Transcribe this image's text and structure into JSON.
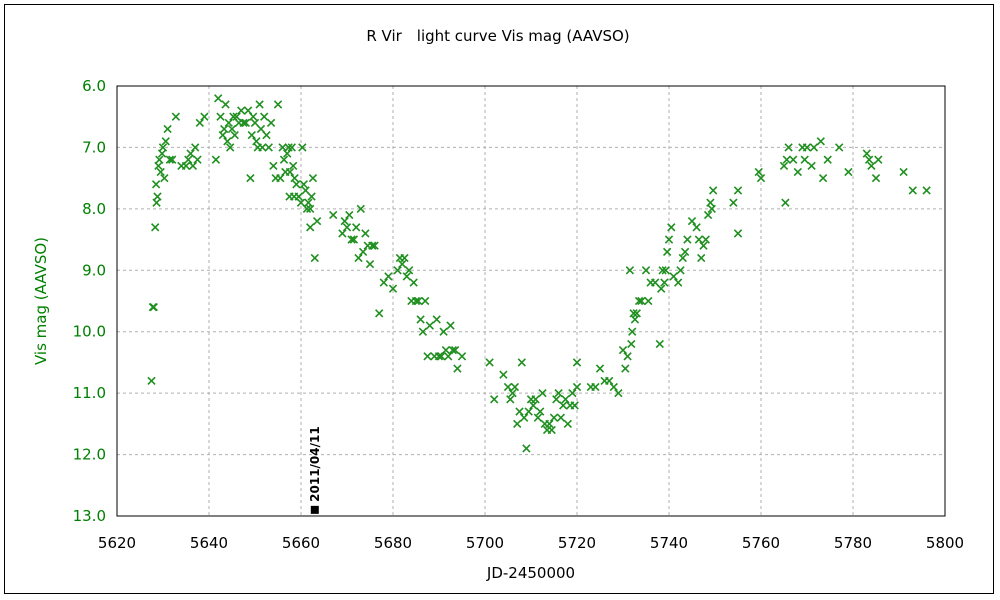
{
  "chart_data": {
    "type": "scatter",
    "title": "R Vir　light curve Vis mag (AAVSO)",
    "xlabel": "JD-2450000",
    "ylabel": "Vis mag (AAVSO)",
    "xlim": [
      5620,
      5800
    ],
    "ylim": [
      13.0,
      6.0
    ],
    "y_inverted": true,
    "grid": true,
    "legend": "none",
    "marker_color": "#1f8f1f",
    "y_axis_color": "#008000",
    "x_ticks": [
      "5620",
      "5640",
      "5660",
      "5680",
      "5700",
      "5720",
      "5740",
      "5760",
      "5780",
      "5800"
    ],
    "y_ticks": [
      "6.0",
      "7.0",
      "8.0",
      "9.0",
      "10.0",
      "11.0",
      "12.0",
      "13.0"
    ],
    "annotation": {
      "label": "2011/04/11",
      "x": 5663,
      "y": 12.9
    },
    "points": [
      [
        5627.5,
        10.8
      ],
      [
        5627.8,
        9.6
      ],
      [
        5628,
        9.6
      ],
      [
        5628.3,
        8.3
      ],
      [
        5628.5,
        7.6
      ],
      [
        5628.6,
        7.9
      ],
      [
        5628.8,
        7.8
      ],
      [
        5629,
        7.3
      ],
      [
        5629.2,
        7.2
      ],
      [
        5629.5,
        7.4
      ],
      [
        5629.8,
        7.1
      ],
      [
        5630,
        7.0
      ],
      [
        5630.3,
        7.5
      ],
      [
        5630.6,
        6.9
      ],
      [
        5631,
        6.7
      ],
      [
        5631.5,
        7.2
      ],
      [
        5632,
        7.2
      ],
      [
        5632.8,
        6.5
      ],
      [
        5634,
        7.3
      ],
      [
        5635,
        7.3
      ],
      [
        5635.5,
        7.2
      ],
      [
        5636,
        7.1
      ],
      [
        5636.5,
        7.3
      ],
      [
        5637,
        7.0
      ],
      [
        5637.5,
        7.2
      ],
      [
        5638,
        6.6
      ],
      [
        5639,
        6.5
      ],
      [
        5641.5,
        7.2
      ],
      [
        5642,
        6.2
      ],
      [
        5642.5,
        6.5
      ],
      [
        5643,
        6.8
      ],
      [
        5643.3,
        6.7
      ],
      [
        5643.6,
        6.3
      ],
      [
        5644,
        6.9
      ],
      [
        5644.3,
        6.6
      ],
      [
        5644.6,
        7.0
      ],
      [
        5645,
        6.7
      ],
      [
        5645.3,
        6.5
      ],
      [
        5645.6,
        6.8
      ],
      [
        5646,
        6.5
      ],
      [
        5646.5,
        6.6
      ],
      [
        5647,
        6.4
      ],
      [
        5647.5,
        6.6
      ],
      [
        5648,
        6.6
      ],
      [
        5648.5,
        6.4
      ],
      [
        5649,
        7.5
      ],
      [
        5649.3,
        6.8
      ],
      [
        5649.6,
        6.5
      ],
      [
        5650,
        6.6
      ],
      [
        5650.3,
        6.9
      ],
      [
        5650.6,
        7.0
      ],
      [
        5651,
        6.3
      ],
      [
        5651.3,
        6.7
      ],
      [
        5651.6,
        7.0
      ],
      [
        5652,
        6.5
      ],
      [
        5652.5,
        6.8
      ],
      [
        5653,
        7.0
      ],
      [
        5653.5,
        6.6
      ],
      [
        5654,
        7.3
      ],
      [
        5654.5,
        7.5
      ],
      [
        5655,
        6.3
      ],
      [
        5655.5,
        7.5
      ],
      [
        5656,
        7.0
      ],
      [
        5656.3,
        7.2
      ],
      [
        5656.6,
        7.4
      ],
      [
        5657,
        7.1
      ],
      [
        5657.3,
        7.0
      ],
      [
        5657.6,
        7.4
      ],
      [
        5658,
        7.0
      ],
      [
        5658.3,
        7.3
      ],
      [
        5658.6,
        7.5
      ],
      [
        5659,
        7.6
      ],
      [
        5657.5,
        7.8
      ],
      [
        5658.5,
        7.8
      ],
      [
        5659.5,
        7.8
      ],
      [
        5660,
        7.9
      ],
      [
        5660.3,
        7.0
      ],
      [
        5660.6,
        7.6
      ],
      [
        5661,
        7.7
      ],
      [
        5661.3,
        8.0
      ],
      [
        5661.6,
        7.9
      ],
      [
        5662,
        8.0
      ],
      [
        5662.3,
        7.8
      ],
      [
        5662.6,
        7.5
      ],
      [
        5662,
        8.3
      ],
      [
        5663,
        8.8
      ],
      [
        5663.5,
        8.2
      ],
      [
        5667,
        8.1
      ],
      [
        5669,
        8.4
      ],
      [
        5669.5,
        8.2
      ],
      [
        5670,
        8.3
      ],
      [
        5670.5,
        8.1
      ],
      [
        5671,
        8.5
      ],
      [
        5671.5,
        8.5
      ],
      [
        5672,
        8.3
      ],
      [
        5672.5,
        8.8
      ],
      [
        5673,
        8.0
      ],
      [
        5673.5,
        8.7
      ],
      [
        5674,
        8.4
      ],
      [
        5674.5,
        8.6
      ],
      [
        5675,
        8.9
      ],
      [
        5675.5,
        8.6
      ],
      [
        5676,
        8.6
      ],
      [
        5677,
        9.7
      ],
      [
        5678,
        9.2
      ],
      [
        5679,
        9.1
      ],
      [
        5680,
        9.3
      ],
      [
        5681,
        9.0
      ],
      [
        5681.5,
        8.8
      ],
      [
        5682,
        8.9
      ],
      [
        5682.5,
        8.8
      ],
      [
        5683,
        9.1
      ],
      [
        5683.5,
        9.0
      ],
      [
        5684,
        9.5
      ],
      [
        5684.5,
        9.2
      ],
      [
        5685,
        9.5
      ],
      [
        5685.5,
        9.5
      ],
      [
        5686,
        9.8
      ],
      [
        5686.5,
        10.0
      ],
      [
        5687,
        9.5
      ],
      [
        5687.5,
        10.4
      ],
      [
        5688,
        9.9
      ],
      [
        5689,
        10.4
      ],
      [
        5689.5,
        9.8
      ],
      [
        5690,
        10.4
      ],
      [
        5690.5,
        10.4
      ],
      [
        5691,
        10.0
      ],
      [
        5691.5,
        10.3
      ],
      [
        5692,
        10.4
      ],
      [
        5692.5,
        9.9
      ],
      [
        5693,
        10.3
      ],
      [
        5693.5,
        10.3
      ],
      [
        5694,
        10.6
      ],
      [
        5695,
        10.4
      ],
      [
        5701,
        10.5
      ],
      [
        5702,
        11.1
      ],
      [
        5704,
        10.7
      ],
      [
        5705,
        10.9
      ],
      [
        5705.5,
        11.1
      ],
      [
        5706,
        11.0
      ],
      [
        5706.5,
        10.9
      ],
      [
        5707,
        11.5
      ],
      [
        5707.5,
        11.3
      ],
      [
        5708,
        10.5
      ],
      [
        5708.5,
        11.4
      ],
      [
        5709,
        11.9
      ],
      [
        5709.5,
        11.3
      ],
      [
        5710,
        11.1
      ],
      [
        5710.5,
        11.2
      ],
      [
        5711,
        11.1
      ],
      [
        5711.5,
        11.4
      ],
      [
        5712,
        11.3
      ],
      [
        5712.5,
        11.0
      ],
      [
        5713,
        11.5
      ],
      [
        5713.5,
        11.6
      ],
      [
        5714,
        11.5
      ],
      [
        5714.5,
        11.6
      ],
      [
        5715,
        11.4
      ],
      [
        5715.5,
        11.1
      ],
      [
        5716,
        11.0
      ],
      [
        5716.5,
        11.4
      ],
      [
        5717,
        11.2
      ],
      [
        5717.5,
        11.1
      ],
      [
        5718,
        11.5
      ],
      [
        5718.5,
        11.2
      ],
      [
        5719,
        11.0
      ],
      [
        5719.5,
        11.2
      ],
      [
        5720,
        10.5
      ],
      [
        5720,
        10.9
      ],
      [
        5723,
        10.9
      ],
      [
        5724,
        10.9
      ],
      [
        5725,
        10.6
      ],
      [
        5726,
        10.8
      ],
      [
        5727,
        10.8
      ],
      [
        5728,
        10.9
      ],
      [
        5729,
        11.0
      ],
      [
        5730,
        10.3
      ],
      [
        5730.5,
        10.6
      ],
      [
        5731,
        10.4
      ],
      [
        5731.5,
        9.0
      ],
      [
        5731.8,
        10.2
      ],
      [
        5732,
        10.0
      ],
      [
        5732.3,
        9.7
      ],
      [
        5732.6,
        9.8
      ],
      [
        5733,
        9.7
      ],
      [
        5733.5,
        9.5
      ],
      [
        5734,
        9.5
      ],
      [
        5735,
        9.0
      ],
      [
        5735.5,
        9.5
      ],
      [
        5736,
        9.2
      ],
      [
        5737,
        9.2
      ],
      [
        5738,
        10.2
      ],
      [
        5738.3,
        9.3
      ],
      [
        5738.6,
        9.0
      ],
      [
        5739,
        9.2
      ],
      [
        5739.3,
        9.0
      ],
      [
        5739.6,
        8.7
      ],
      [
        5740,
        8.5
      ],
      [
        5740.5,
        8.3
      ],
      [
        5741,
        9.1
      ],
      [
        5742,
        9.2
      ],
      [
        5742.5,
        9.0
      ],
      [
        5743,
        8.8
      ],
      [
        5743.5,
        8.7
      ],
      [
        5744,
        8.5
      ],
      [
        5745,
        8.2
      ],
      [
        5746,
        8.3
      ],
      [
        5746.5,
        8.5
      ],
      [
        5747,
        8.8
      ],
      [
        5747.5,
        8.6
      ],
      [
        5748,
        8.5
      ],
      [
        5748.5,
        8.1
      ],
      [
        5749,
        7.9
      ],
      [
        5749.3,
        8.0
      ],
      [
        5749.6,
        7.7
      ],
      [
        5754,
        7.9
      ],
      [
        5755,
        7.7
      ],
      [
        5755,
        8.4
      ],
      [
        5759.5,
        7.4
      ],
      [
        5760,
        7.5
      ],
      [
        5765,
        7.3
      ],
      [
        5765.3,
        7.9
      ],
      [
        5765.6,
        7.2
      ],
      [
        5766,
        7.0
      ],
      [
        5767,
        7.2
      ],
      [
        5768,
        7.4
      ],
      [
        5769,
        7.0
      ],
      [
        5769.5,
        7.2
      ],
      [
        5770,
        7.0
      ],
      [
        5771,
        7.3
      ],
      [
        5771.5,
        7.0
      ],
      [
        5773,
        6.9
      ],
      [
        5773.5,
        7.5
      ],
      [
        5774.5,
        7.2
      ],
      [
        5777,
        7.0
      ],
      [
        5779,
        7.4
      ],
      [
        5783,
        7.1
      ],
      [
        5783.5,
        7.2
      ],
      [
        5784,
        7.3
      ],
      [
        5785,
        7.5
      ],
      [
        5785.5,
        7.2
      ],
      [
        5791,
        7.4
      ],
      [
        5793,
        7.7
      ],
      [
        5796,
        7.7
      ]
    ]
  }
}
